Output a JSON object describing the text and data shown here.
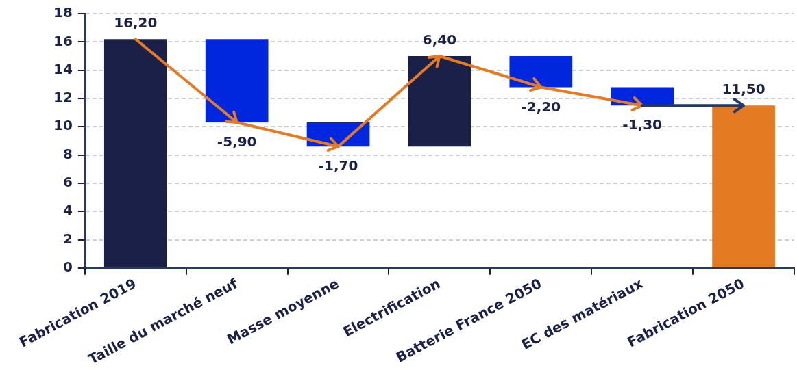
{
  "chart_data": {
    "type": "bar",
    "categories": [
      "Fabrication 2019",
      "Taille du marché neuf",
      "Masse moyenne",
      "Electrification",
      "Batterie France 2050",
      "EC des matériaux",
      "Fabrication 2050"
    ],
    "values": [
      16.2,
      -5.9,
      -1.7,
      6.4,
      -2.2,
      -1.3,
      11.5
    ],
    "base": [
      0,
      16.2,
      10.3,
      8.6,
      15.0,
      12.8,
      0
    ],
    "colors": [
      "#1b2049",
      "#0026de",
      "#0026de",
      "#1b2049",
      "#0026de",
      "#0026de",
      "#e47a22"
    ],
    "value_labels": [
      "16,20",
      "-5,90",
      "-1,70",
      "6,40",
      "-2,20",
      "-1,30",
      "11,50"
    ],
    "ylim": [
      0,
      18
    ],
    "yticks": [
      0,
      2,
      4,
      6,
      8,
      10,
      12,
      14,
      16,
      18
    ],
    "grid": "y",
    "legend": false
  }
}
